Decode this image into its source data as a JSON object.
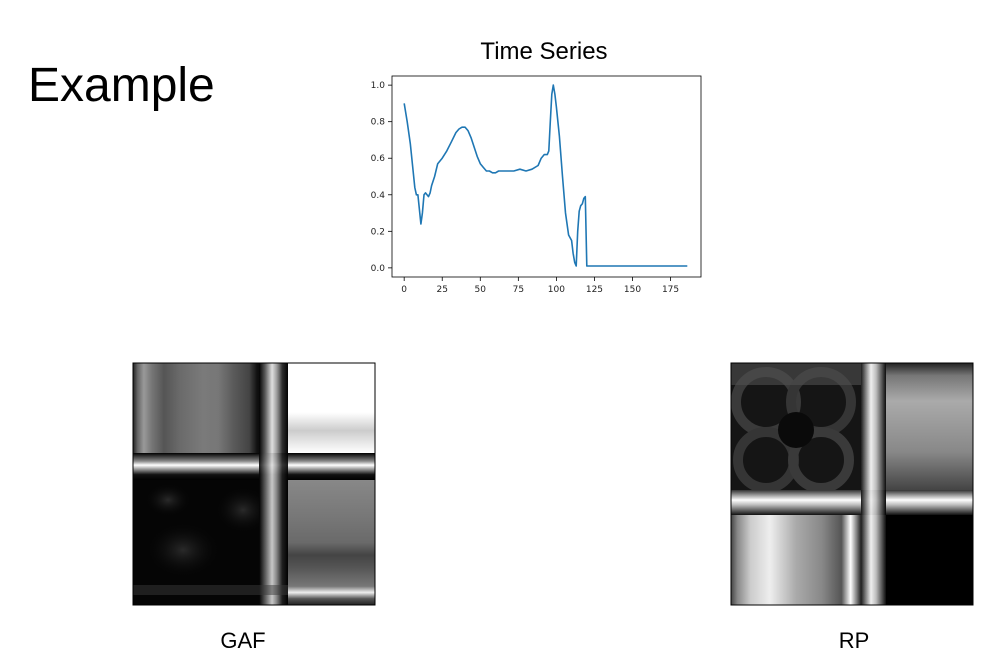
{
  "slide": {
    "title": "Example"
  },
  "chart_data": {
    "type": "line",
    "title": "Time Series",
    "xlabel": "",
    "ylabel": "",
    "xlim": [
      -8,
      195
    ],
    "ylim": [
      -0.05,
      1.05
    ],
    "xticks": [
      0,
      25,
      50,
      75,
      100,
      125,
      150,
      175
    ],
    "yticks": [
      0.0,
      0.2,
      0.4,
      0.6,
      0.8,
      1.0
    ],
    "grid": false,
    "color": "#1f77b4",
    "series": [
      {
        "x": [
          0,
          2,
          4,
          6,
          7,
          8,
          9,
          10,
          11,
          12,
          13,
          14,
          15,
          16,
          17,
          18,
          20,
          22,
          25,
          28,
          31,
          34,
          36,
          38,
          40,
          42,
          44,
          46,
          48,
          50,
          52,
          54,
          56,
          58,
          60,
          62,
          65,
          68,
          72,
          76,
          80,
          84,
          88,
          90,
          92,
          93,
          94,
          95,
          96,
          97,
          98,
          99,
          100,
          102,
          104,
          106,
          108,
          110,
          111,
          112,
          113,
          114,
          115,
          116,
          117,
          118,
          119,
          120,
          125,
          150,
          175,
          186
        ],
        "y": [
          0.9,
          0.8,
          0.68,
          0.52,
          0.44,
          0.4,
          0.4,
          0.32,
          0.24,
          0.3,
          0.4,
          0.41,
          0.4,
          0.39,
          0.41,
          0.45,
          0.5,
          0.57,
          0.6,
          0.64,
          0.69,
          0.74,
          0.76,
          0.77,
          0.77,
          0.75,
          0.71,
          0.66,
          0.61,
          0.57,
          0.55,
          0.53,
          0.53,
          0.52,
          0.52,
          0.53,
          0.53,
          0.53,
          0.53,
          0.54,
          0.53,
          0.54,
          0.56,
          0.6,
          0.62,
          0.62,
          0.62,
          0.64,
          0.8,
          0.95,
          1.0,
          0.95,
          0.88,
          0.72,
          0.5,
          0.3,
          0.18,
          0.15,
          0.08,
          0.03,
          0.01,
          0.2,
          0.31,
          0.34,
          0.35,
          0.38,
          0.39,
          0.01,
          0.01,
          0.01,
          0.01,
          0.01
        ]
      }
    ]
  },
  "images": {
    "gaf": {
      "caption": "GAF"
    },
    "rp": {
      "caption": "RP"
    }
  }
}
